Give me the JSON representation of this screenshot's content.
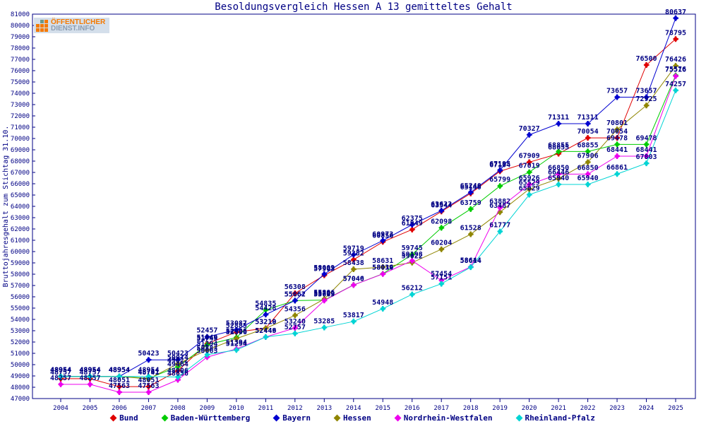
{
  "title": "Besoldungsvergleich Hessen A 13 gemitteltes Gehalt",
  "logo": {
    "line1": "ÖFFENTLICHER",
    "line2": "DIENST.INFO"
  },
  "y_axis": {
    "label": "Bruttojahresgehalt zum Stichtag 31.10.",
    "min": 47000,
    "max": 81000,
    "step": 1000
  },
  "colors": {
    "axis_text": "#000084",
    "plot_border": "#000084",
    "logo_orange": "#f57900",
    "logo_gray": "#8d9db1",
    "logo_bg": "#d4dfeb",
    "logo_teal": "#6a998a"
  },
  "chart_data": {
    "type": "line",
    "title": "Besoldungsvergleich Hessen A 13 gemitteltes Gehalt",
    "ylabel": "Bruttojahresgehalt zum Stichtag 31.10.",
    "ylim": [
      47000,
      81000
    ],
    "grid": false,
    "legend_position": "bottom",
    "x": [
      2004,
      2005,
      2006,
      2007,
      2008,
      2009,
      2010,
      2011,
      2012,
      2013,
      2014,
      2015,
      2016,
      2017,
      2018,
      2019,
      2020,
      2021,
      2022,
      2023,
      2024,
      2025
    ],
    "series": [
      {
        "name": "Bund",
        "color": "#e00000",
        "values": [
          48757,
          48757,
          48051,
          48051,
          49464,
          51849,
          52885,
          53219,
          56308,
          57903,
          59282,
          60856,
          61949,
          63544,
          65140,
          67104,
          67909,
          68655,
          70054,
          70054,
          76500,
          78795
        ]
      },
      {
        "name": "Baden-Württemberg",
        "color": "#00cc00",
        "values": [
          48954,
          48954,
          48954,
          48791,
          49822,
          51749,
          52406,
          54835,
          55662,
          55709,
          57046,
          58034,
          59745,
          62098,
          63759,
          65799,
          67019,
          68855,
          68855,
          69478,
          69478,
          75576
        ]
      },
      {
        "name": "Bayern",
        "color": "#0000d0",
        "values": [
          48954,
          48954,
          48954,
          50423,
          50423,
          52457,
          53087,
          54428,
          55667,
          58009,
          59719,
          60973,
          62375,
          63622,
          65240,
          67195,
          70327,
          71311,
          71311,
          73657,
          73657,
          80637
        ]
      },
      {
        "name": "Hessen",
        "color": "#8f8500",
        "values": [
          48954,
          48954,
          48954,
          48741,
          50074,
          51294,
          52306,
          53210,
          54356,
          55806,
          58438,
          58631,
          59022,
          60204,
          61528,
          63487,
          65529,
          66446,
          67906,
          70801,
          72925,
          76426
        ]
      },
      {
        "name": "Nordrhein-Westfalen",
        "color": "#ee00ee",
        "values": [
          48257,
          48257,
          47563,
          47563,
          48656,
          50663,
          51394,
          52449,
          53240,
          55669,
          57040,
          58019,
          59198,
          57454,
          58644,
          63882,
          65926,
          66850,
          66850,
          68441,
          68441,
          75516
        ]
      },
      {
        "name": "Rheinland-Pfalz",
        "color": "#00d4d4",
        "values": [
          48954,
          48954,
          48954,
          48954,
          48906,
          50883,
          51294,
          52446,
          52757,
          53285,
          53817,
          54948,
          56212,
          57151,
          58614,
          61777,
          65029,
          65940,
          65940,
          66861,
          67803,
          74257
        ]
      }
    ]
  }
}
